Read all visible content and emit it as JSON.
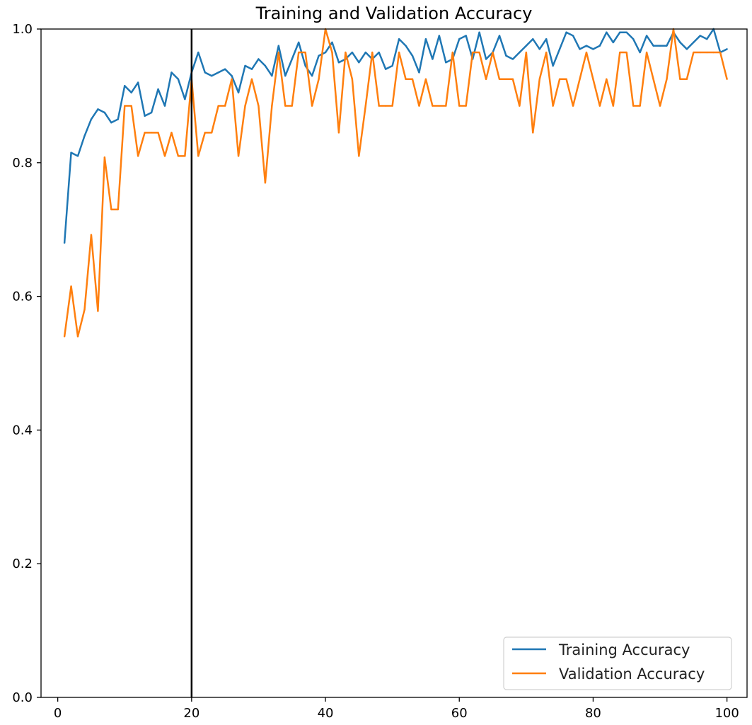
{
  "chart_data": {
    "type": "line",
    "title": "Training and Validation Accuracy",
    "xlabel": "",
    "ylabel": "",
    "xlim": [
      -2.5,
      103
    ],
    "ylim": [
      0.0,
      1.0
    ],
    "xticks": [
      0,
      20,
      40,
      60,
      80,
      100
    ],
    "yticks": [
      0.0,
      0.2,
      0.4,
      0.6,
      0.8,
      1.0
    ],
    "xtick_labels": [
      "0",
      "20",
      "40",
      "60",
      "80",
      "100"
    ],
    "ytick_labels": [
      "0.0",
      "0.2",
      "0.4",
      "0.6",
      "0.8",
      "1.0"
    ],
    "grid": false,
    "legend_position": "lower-right",
    "vertical_line_x": 20,
    "x": [
      1,
      2,
      3,
      4,
      5,
      6,
      7,
      8,
      9,
      10,
      11,
      12,
      13,
      14,
      15,
      16,
      17,
      18,
      19,
      20,
      21,
      22,
      23,
      24,
      25,
      26,
      27,
      28,
      29,
      30,
      31,
      32,
      33,
      34,
      35,
      36,
      37,
      38,
      39,
      40,
      41,
      42,
      43,
      44,
      45,
      46,
      47,
      48,
      49,
      50,
      51,
      52,
      53,
      54,
      55,
      56,
      57,
      58,
      59,
      60,
      61,
      62,
      63,
      64,
      65,
      66,
      67,
      68,
      69,
      70,
      71,
      72,
      73,
      74,
      75,
      76,
      77,
      78,
      79,
      80,
      81,
      82,
      83,
      84,
      85,
      86,
      87,
      88,
      89,
      90,
      91,
      92,
      93,
      94,
      95,
      96,
      97,
      98,
      99,
      100
    ],
    "series": [
      {
        "name": "Training Accuracy",
        "color": "#1f77b4",
        "values": [
          0.68,
          0.815,
          0.81,
          0.84,
          0.865,
          0.88,
          0.875,
          0.86,
          0.865,
          0.915,
          0.905,
          0.92,
          0.87,
          0.875,
          0.91,
          0.885,
          0.935,
          0.925,
          0.895,
          0.935,
          0.965,
          0.935,
          0.93,
          0.935,
          0.94,
          0.93,
          0.905,
          0.945,
          0.94,
          0.955,
          0.945,
          0.93,
          0.975,
          0.93,
          0.955,
          0.98,
          0.945,
          0.93,
          0.96,
          0.965,
          0.98,
          0.95,
          0.955,
          0.965,
          0.95,
          0.965,
          0.955,
          0.965,
          0.94,
          0.945,
          0.985,
          0.975,
          0.96,
          0.935,
          0.985,
          0.955,
          0.99,
          0.95,
          0.955,
          0.985,
          0.99,
          0.955,
          0.995,
          0.955,
          0.965,
          0.99,
          0.96,
          0.955,
          0.965,
          0.975,
          0.985,
          0.97,
          0.985,
          0.945,
          0.97,
          0.995,
          0.99,
          0.97,
          0.975,
          0.97,
          0.975,
          0.995,
          0.98,
          0.995,
          0.995,
          0.985,
          0.965,
          0.99,
          0.975,
          0.975,
          0.975,
          0.995,
          0.98,
          0.97,
          0.98,
          0.99,
          0.985,
          1.0,
          0.965,
          0.97
        ]
      },
      {
        "name": "Validation Accuracy",
        "color": "#ff7f0e",
        "values": [
          0.54,
          0.615,
          0.54,
          0.58,
          0.692,
          0.578,
          0.808,
          0.73,
          0.73,
          0.885,
          0.885,
          0.81,
          0.845,
          0.845,
          0.845,
          0.81,
          0.845,
          0.81,
          0.81,
          0.925,
          0.81,
          0.845,
          0.845,
          0.885,
          0.885,
          0.925,
          0.81,
          0.885,
          0.925,
          0.885,
          0.77,
          0.885,
          0.965,
          0.885,
          0.885,
          0.965,
          0.965,
          0.885,
          0.925,
          1.0,
          0.965,
          0.845,
          0.965,
          0.925,
          0.81,
          0.885,
          0.965,
          0.885,
          0.885,
          0.885,
          0.965,
          0.925,
          0.925,
          0.885,
          0.925,
          0.885,
          0.885,
          0.885,
          0.965,
          0.885,
          0.885,
          0.965,
          0.965,
          0.925,
          0.965,
          0.925,
          0.925,
          0.925,
          0.885,
          0.965,
          0.845,
          0.925,
          0.965,
          0.885,
          0.925,
          0.925,
          0.885,
          0.925,
          0.965,
          0.925,
          0.885,
          0.925,
          0.885,
          0.965,
          0.965,
          0.885,
          0.885,
          0.965,
          0.925,
          0.885,
          0.925,
          1.0,
          0.925,
          0.925,
          0.965,
          0.965,
          0.965,
          0.965,
          0.965,
          0.925
        ]
      }
    ]
  }
}
